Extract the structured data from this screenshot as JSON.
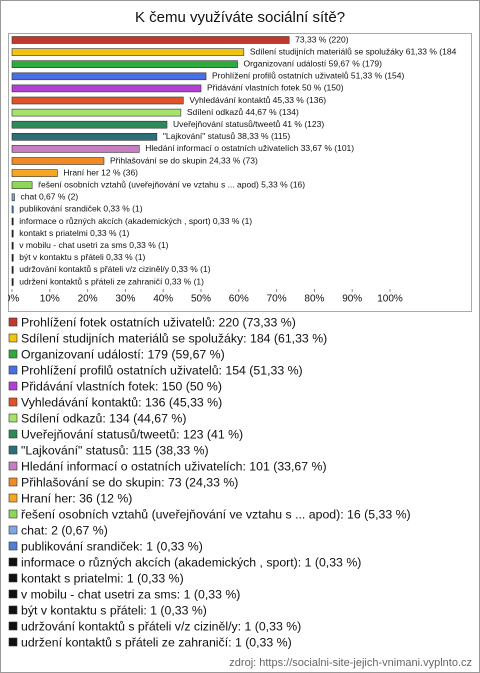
{
  "chart_data": {
    "type": "bar",
    "orientation": "horizontal",
    "title": "K čemu využíváte sociální sítě?",
    "values": [
      73.33,
      61.33,
      59.67,
      51.33,
      50,
      45.33,
      44.67,
      41,
      38.33,
      33.67,
      24.33,
      12,
      5.33,
      0.67,
      0.33,
      0.33,
      0.33,
      0.33,
      0.33,
      0.33,
      0.33
    ],
    "value_labels": [
      "73,33 % (220)",
      "Sdílení studijních materiálů se spolužáky 61,33 % (184",
      "Organizovaní událostí 59,67 % (179)",
      "Prohlížení profilů ostatních uživatelů 51,33 % (154)",
      "Přidávání vlastních fotek 50 % (150)",
      "Vyhledávání kontaktů 45,33 % (136)",
      "Sdílení odkazů 44,67 % (134)",
      "Uveřejňování statusů/tweetů 41 % (123)",
      "\"Lajkování\" statusů 38,33 % (115)",
      "Hledání informací o ostatních uživatelích 33,67 % (101)",
      "Přihlašování se do skupin 24,33 % (73)",
      "Hraní her 12 % (36)",
      "řešení osobních vztahů (uveřejňování ve vztahu s ... apod) 5,33 % (16)",
      "chat 0,67 % (2)",
      "publikování srandiček 0,33 % (1)",
      "informace o  různých akcích (akademických , sport) 0,33 % (1)",
      "kontakt s priatelmi 0,33 % (1)",
      "v mobilu - chat usetri za sms 0,33 % (1)",
      "být v kontaktu s přáteli 0,33 % (1)",
      "udržování kontaktů s přáteli v/z ciziněl/y 0,33 % (1)",
      "udržení kontaktů s přáteli ze zahraničí 0,33 % (1)"
    ],
    "legend_labels": [
      "Prohlížení fotek ostatních uživatelů: 220 (73,33 %)",
      "Sdílení studijních materiálů se spolužáky: 184 (61,33 %)",
      "Organizovaní událostí: 179 (59,67 %)",
      "Prohlížení profilů ostatních uživatelů: 154 (51,33 %)",
      "Přidávání vlastních fotek: 150 (50 %)",
      "Vyhledávání kontaktů: 136 (45,33 %)",
      "Sdílení odkazů: 134 (44,67 %)",
      "Uveřejňování statusů/tweetů: 123 (41 %)",
      "\"Lajkování\" statusů: 115 (38,33 %)",
      "Hledání informací o ostatních uživatelích: 101 (33,67 %)",
      "Přihlašování se do skupin: 73 (24,33 %)",
      "Hraní her: 36 (12 %)",
      "řešení osobních vztahů (uveřejňování ve vztahu s ... apod): 16 (5,33 %)",
      "chat: 2 (0,67 %)",
      "publikování srandiček: 1 (0,33 %)",
      "informace o  různých akcích (akademických , sport): 1 (0,33 %)",
      "kontakt s priatelmi: 1 (0,33 %)",
      "v mobilu - chat usetri za sms: 1 (0,33 %)",
      "být v kontaktu s přáteli: 1 (0,33 %)",
      "udržování kontaktů s přáteli v/z ciziněl/y: 1 (0,33 %)",
      "udržení kontaktů s přáteli ze zahraničí: 1 (0,33 %)"
    ],
    "colors": [
      "#c0392b",
      "#f1c40f",
      "#2eab3c",
      "#4a6fe3",
      "#b33fd6",
      "#e0522a",
      "#a6e36b",
      "#2e8b57",
      "#2c6e7a",
      "#c77dbf",
      "#f08a24",
      "#f5a623",
      "#8fd65b",
      "#7fa8e0",
      "#4d7fd6",
      "#111111",
      "#111111",
      "#111111",
      "#111111",
      "#111111",
      "#111111"
    ],
    "xlim": [
      0,
      100
    ],
    "xticks": [
      {
        "value": 0,
        "label": "0%"
      },
      {
        "value": 10,
        "label": "10%"
      },
      {
        "value": 20,
        "label": "20%"
      },
      {
        "value": 30,
        "label": "30%"
      },
      {
        "value": 40,
        "label": "40%"
      },
      {
        "value": 50,
        "label": "50%"
      },
      {
        "value": 60,
        "label": "60%"
      },
      {
        "value": 70,
        "label": "70%"
      },
      {
        "value": 80,
        "label": "80%"
      },
      {
        "value": 90,
        "label": "90%"
      },
      {
        "value": 100,
        "label": "100%"
      }
    ],
    "source": "zdroj: https://socialni-site-jejich-vnimani.vyplnto.cz"
  }
}
